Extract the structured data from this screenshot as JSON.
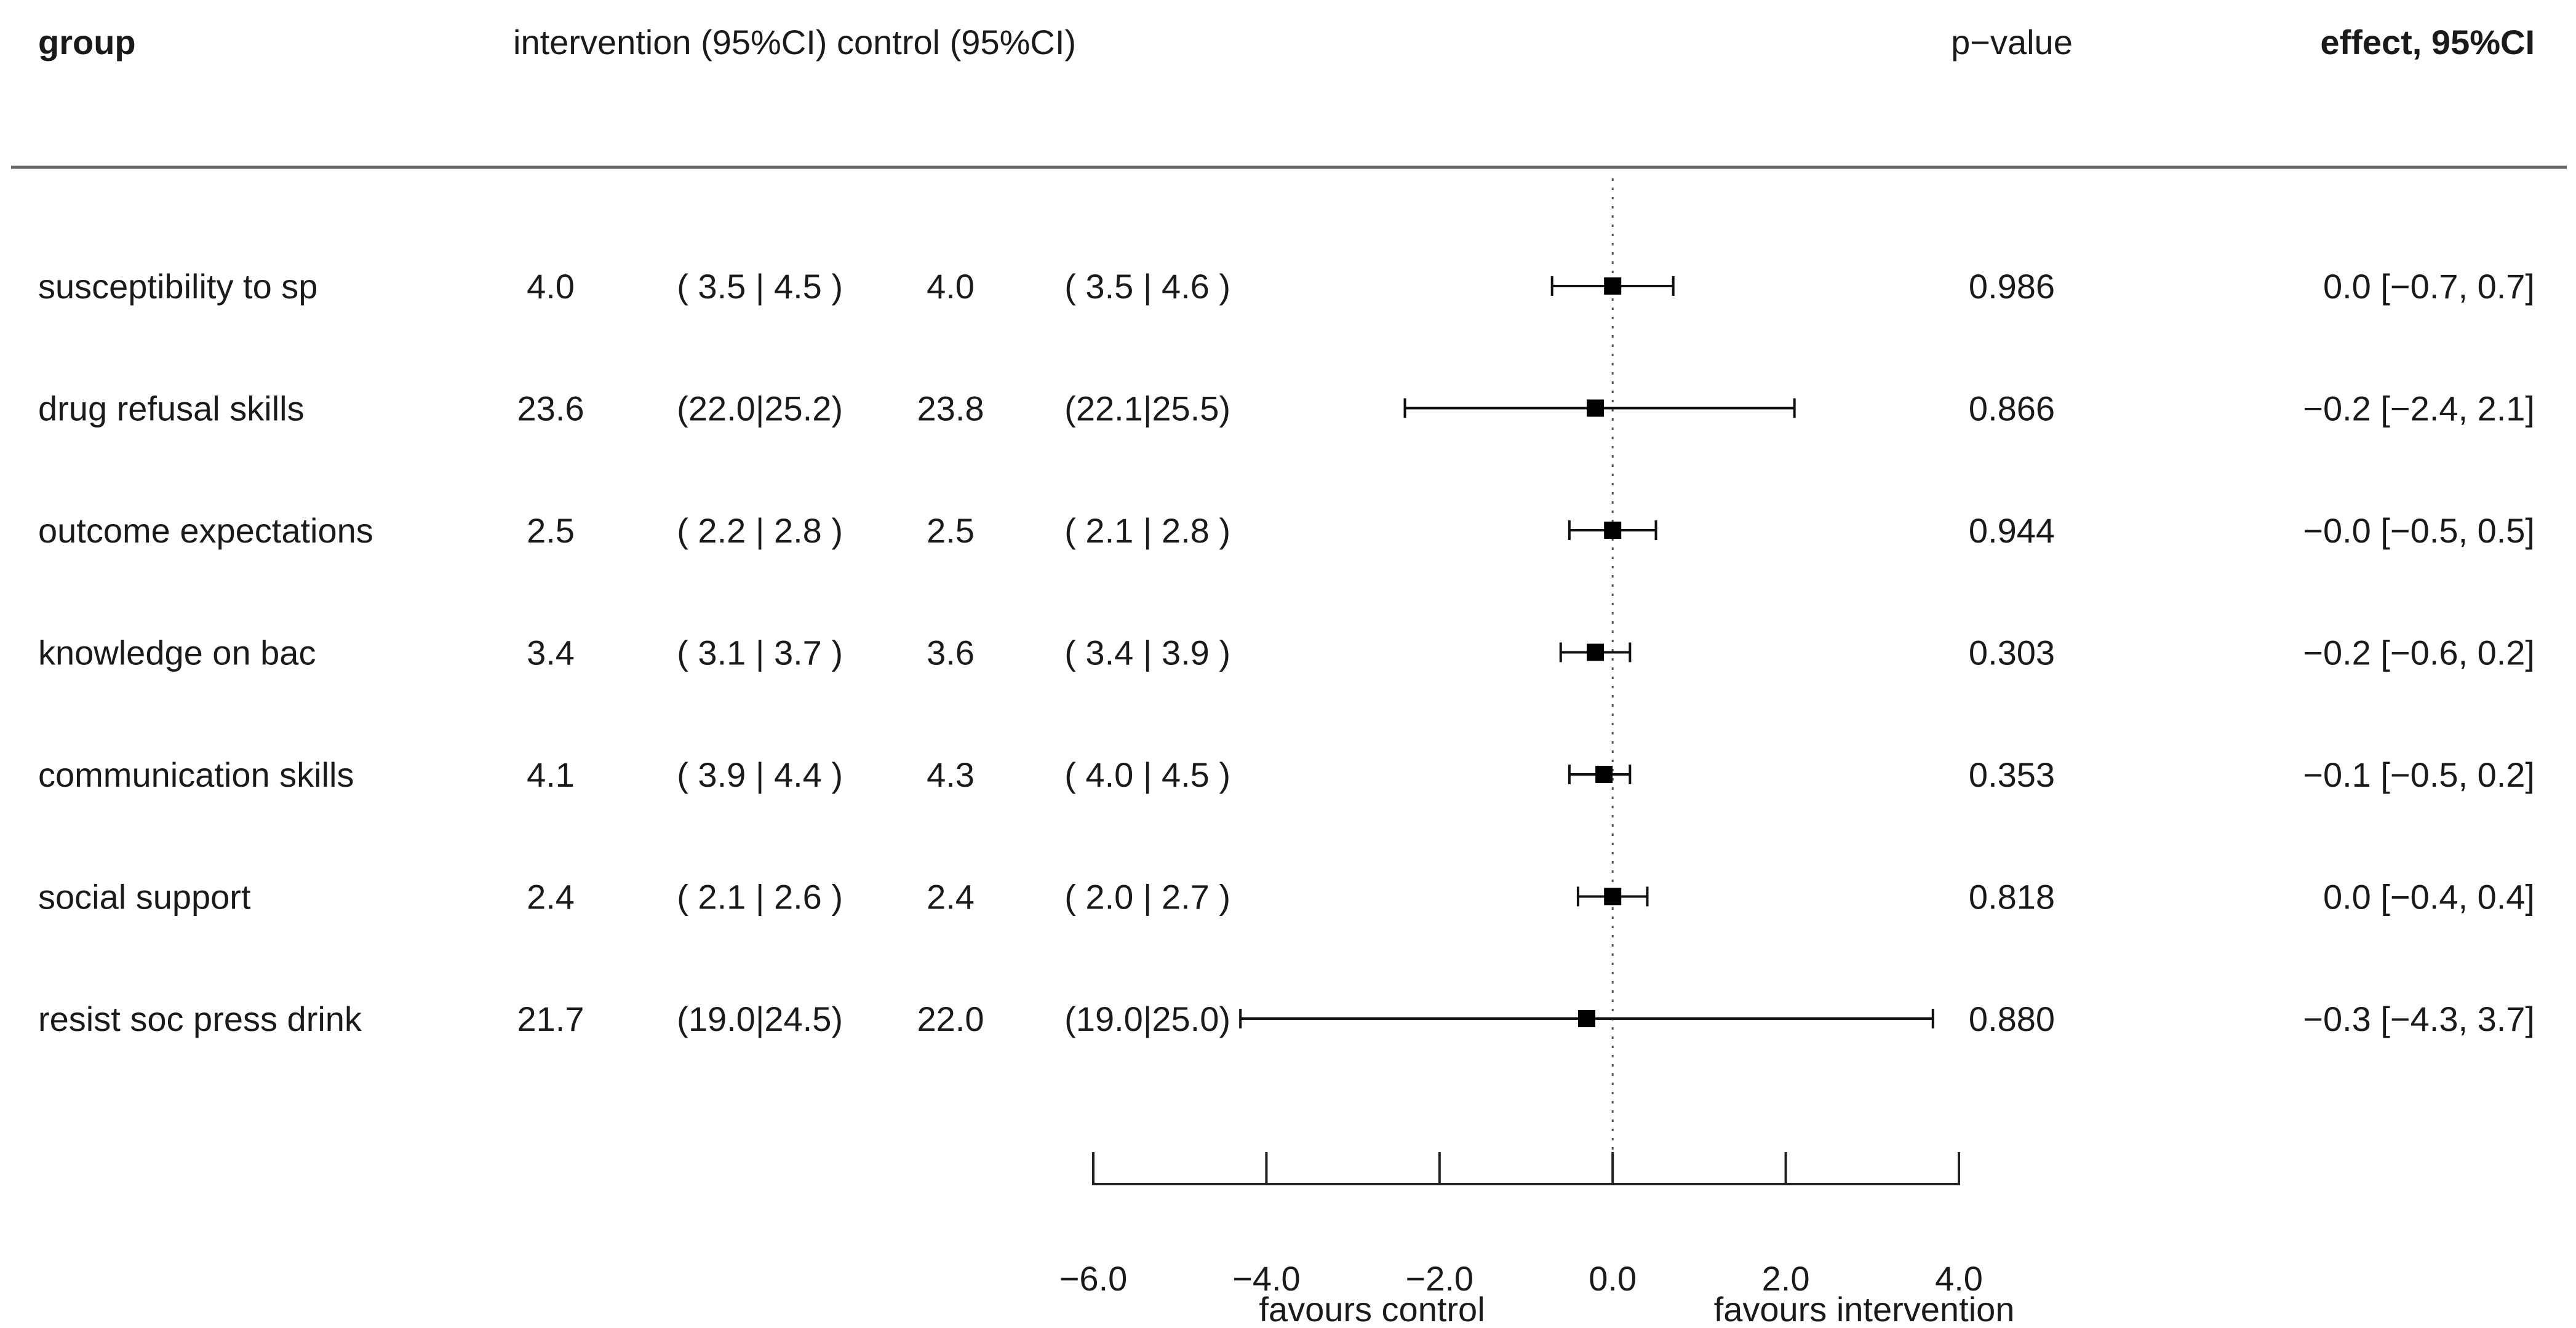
{
  "chart_data": {
    "type": "forest",
    "title": "",
    "headers": {
      "group": "group",
      "intervention_control": "intervention (95%CI) control (95%CI)",
      "pvalue": "p−value",
      "effect": "effect, 95%CI"
    },
    "rows": [
      {
        "group": "susceptibility to sp",
        "int_mean": "4.0",
        "int_ci": "( 3.5 | 4.5 )",
        "ctrl_mean": "4.0",
        "ctrl_ci": "( 3.5 | 4.6 )",
        "effect": 0.0,
        "lower": -0.7,
        "upper": 0.7,
        "pvalue": "0.986",
        "effect_text": "0.0 [−0.7, 0.7]"
      },
      {
        "group": "drug refusal skills",
        "int_mean": "23.6",
        "int_ci": "(22.0|25.2)",
        "ctrl_mean": "23.8",
        "ctrl_ci": "(22.1|25.5)",
        "effect": -0.2,
        "lower": -2.4,
        "upper": 2.1,
        "pvalue": "0.866",
        "effect_text": "−0.2 [−2.4, 2.1]"
      },
      {
        "group": "outcome expectations",
        "int_mean": "2.5",
        "int_ci": "( 2.2 | 2.8 )",
        "ctrl_mean": "2.5",
        "ctrl_ci": "( 2.1 | 2.8 )",
        "effect": 0.0,
        "lower": -0.5,
        "upper": 0.5,
        "pvalue": "0.944",
        "effect_text": "−0.0 [−0.5, 0.5]"
      },
      {
        "group": "knowledge on bac",
        "int_mean": "3.4",
        "int_ci": "( 3.1 | 3.7 )",
        "ctrl_mean": "3.6",
        "ctrl_ci": "( 3.4 | 3.9 )",
        "effect": -0.2,
        "lower": -0.6,
        "upper": 0.2,
        "pvalue": "0.303",
        "effect_text": "−0.2 [−0.6, 0.2]"
      },
      {
        "group": "communication skills",
        "int_mean": "4.1",
        "int_ci": "( 3.9 | 4.4 )",
        "ctrl_mean": "4.3",
        "ctrl_ci": "( 4.0 | 4.5 )",
        "effect": -0.1,
        "lower": -0.5,
        "upper": 0.2,
        "pvalue": "0.353",
        "effect_text": "−0.1 [−0.5, 0.2]"
      },
      {
        "group": "social support",
        "int_mean": "2.4",
        "int_ci": "( 2.1 | 2.6 )",
        "ctrl_mean": "2.4",
        "ctrl_ci": "( 2.0 | 2.7 )",
        "effect": 0.0,
        "lower": -0.4,
        "upper": 0.4,
        "pvalue": "0.818",
        "effect_text": "0.0 [−0.4, 0.4]"
      },
      {
        "group": "resist soc press drink",
        "int_mean": "21.7",
        "int_ci": "(19.0|24.5)",
        "ctrl_mean": "22.0",
        "ctrl_ci": "(19.0|25.0)",
        "effect": -0.3,
        "lower": -4.3,
        "upper": 3.7,
        "pvalue": "0.880",
        "effect_text": "−0.3 [−4.3, 3.7]"
      }
    ],
    "xlim": [
      -6.0,
      4.0
    ],
    "xticks": [
      -6.0,
      -4.0,
      -2.0,
      0.0,
      2.0,
      4.0
    ],
    "xtick_labels": [
      "−6.0",
      "−4.0",
      "−2.0",
      "0.0",
      "2.0",
      "4.0"
    ],
    "reference_line": 0.0,
    "xlabel_left": "favours control",
    "xlabel_right": "favours intervention"
  }
}
